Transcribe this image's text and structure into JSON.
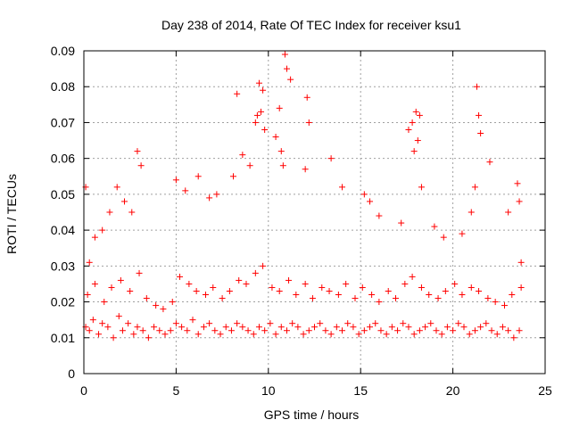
{
  "chart_data": {
    "type": "scatter",
    "title": "Day 238 of 2014, Rate Of TEC Index for receiver ksu1",
    "xlabel": "GPS time / hours",
    "ylabel": "ROTI / TECUs",
    "xlim": [
      0,
      25
    ],
    "ylim": [
      0,
      0.09
    ],
    "x_ticks": [
      "0",
      "5",
      "10",
      "15",
      "20",
      "25"
    ],
    "y_ticks": [
      "0",
      "0.01",
      "0.02",
      "0.03",
      "0.04",
      "0.05",
      "0.06",
      "0.07",
      "0.08",
      "0.09"
    ],
    "grid": true,
    "marker": "plus",
    "color": "#ff0000",
    "series": [
      {
        "x": [
          0.1,
          0.3,
          0.5,
          0.8,
          1.0,
          1.3,
          1.6,
          1.9,
          2.1,
          2.4,
          2.7,
          2.9,
          3.2,
          3.5,
          3.8,
          4.1,
          4.4,
          4.7,
          5.0,
          5.3,
          5.6,
          5.9,
          6.2,
          6.5,
          6.8,
          7.1,
          7.4,
          7.7,
          8.0,
          8.3,
          8.6,
          8.9,
          9.2,
          9.5,
          9.8,
          10.1,
          10.4,
          10.7,
          11.0,
          11.3,
          11.6,
          11.9,
          12.2,
          12.5,
          12.8,
          13.1,
          13.4,
          13.7,
          14.0,
          14.3,
          14.6,
          14.9,
          15.2,
          15.5,
          15.8,
          16.1,
          16.4,
          16.7,
          17.0,
          17.3,
          17.6,
          17.9,
          18.2,
          18.5,
          18.8,
          19.1,
          19.4,
          19.7,
          20.0,
          20.3,
          20.6,
          20.9,
          21.2,
          21.5,
          21.8,
          22.1,
          22.4,
          22.7,
          23.0,
          23.3,
          23.6,
          0.2,
          0.6,
          1.1,
          1.5,
          2.0,
          2.5,
          3.0,
          3.4,
          3.9,
          4.3,
          4.8,
          5.2,
          5.7,
          6.1,
          6.6,
          7.0,
          7.5,
          7.9,
          8.4,
          8.8,
          9.3,
          9.7,
          10.2,
          10.6,
          11.1,
          11.5,
          12.0,
          12.4,
          12.9,
          13.3,
          13.8,
          14.2,
          14.7,
          15.1,
          15.6,
          16.0,
          16.5,
          16.9,
          17.4,
          17.8,
          18.3,
          18.7,
          19.2,
          19.6,
          20.1,
          20.5,
          21.0,
          21.4,
          21.9,
          22.3,
          22.8,
          23.2,
          23.7,
          0.1,
          0.3,
          0.6,
          1.0,
          1.4,
          1.8,
          2.2,
          2.6,
          2.9,
          3.1,
          5.0,
          5.5,
          6.2,
          6.8,
          7.2,
          8.1,
          8.3,
          8.6,
          9.0,
          9.3,
          9.4,
          9.5,
          9.6,
          9.7,
          9.8,
          10.4,
          10.6,
          10.7,
          10.8,
          10.9,
          11.0,
          11.2,
          12.0,
          12.1,
          12.2,
          13.4,
          14.0,
          15.2,
          15.5,
          16.0,
          17.2,
          17.6,
          17.8,
          17.9,
          18.0,
          18.1,
          18.2,
          18.3,
          19.0,
          19.5,
          20.5,
          21.0,
          21.2,
          21.3,
          21.4,
          21.5,
          22.0,
          23.0,
          23.5,
          23.6,
          23.7
        ],
        "y": [
          0.013,
          0.012,
          0.015,
          0.011,
          0.014,
          0.013,
          0.01,
          0.016,
          0.012,
          0.014,
          0.011,
          0.013,
          0.012,
          0.01,
          0.013,
          0.012,
          0.011,
          0.012,
          0.014,
          0.013,
          0.012,
          0.015,
          0.011,
          0.013,
          0.014,
          0.012,
          0.011,
          0.013,
          0.012,
          0.014,
          0.013,
          0.012,
          0.011,
          0.013,
          0.012,
          0.014,
          0.011,
          0.013,
          0.012,
          0.014,
          0.013,
          0.011,
          0.012,
          0.013,
          0.014,
          0.012,
          0.011,
          0.013,
          0.012,
          0.014,
          0.013,
          0.011,
          0.012,
          0.013,
          0.014,
          0.012,
          0.011,
          0.013,
          0.012,
          0.014,
          0.013,
          0.011,
          0.012,
          0.013,
          0.014,
          0.012,
          0.011,
          0.013,
          0.012,
          0.014,
          0.013,
          0.011,
          0.012,
          0.013,
          0.014,
          0.012,
          0.011,
          0.013,
          0.012,
          0.01,
          0.012,
          0.022,
          0.025,
          0.02,
          0.024,
          0.026,
          0.023,
          0.028,
          0.021,
          0.019,
          0.018,
          0.02,
          0.027,
          0.025,
          0.023,
          0.022,
          0.024,
          0.021,
          0.023,
          0.026,
          0.025,
          0.028,
          0.03,
          0.024,
          0.023,
          0.026,
          0.022,
          0.025,
          0.021,
          0.024,
          0.023,
          0.022,
          0.025,
          0.021,
          0.024,
          0.022,
          0.02,
          0.023,
          0.021,
          0.025,
          0.027,
          0.024,
          0.022,
          0.021,
          0.023,
          0.025,
          0.022,
          0.024,
          0.023,
          0.021,
          0.02,
          0.019,
          0.022,
          0.024,
          0.052,
          0.031,
          0.038,
          0.04,
          0.045,
          0.052,
          0.048,
          0.045,
          0.062,
          0.058,
          0.054,
          0.051,
          0.055,
          0.049,
          0.05,
          0.055,
          0.078,
          0.061,
          0.058,
          0.07,
          0.072,
          0.081,
          0.073,
          0.079,
          0.068,
          0.066,
          0.074,
          0.062,
          0.058,
          0.089,
          0.085,
          0.082,
          0.057,
          0.077,
          0.07,
          0.06,
          0.052,
          0.05,
          0.048,
          0.044,
          0.042,
          0.068,
          0.07,
          0.062,
          0.073,
          0.065,
          0.072,
          0.052,
          0.041,
          0.038,
          0.039,
          0.045,
          0.052,
          0.08,
          0.072,
          0.067,
          0.059,
          0.045,
          0.053,
          0.048,
          0.031
        ]
      }
    ]
  }
}
